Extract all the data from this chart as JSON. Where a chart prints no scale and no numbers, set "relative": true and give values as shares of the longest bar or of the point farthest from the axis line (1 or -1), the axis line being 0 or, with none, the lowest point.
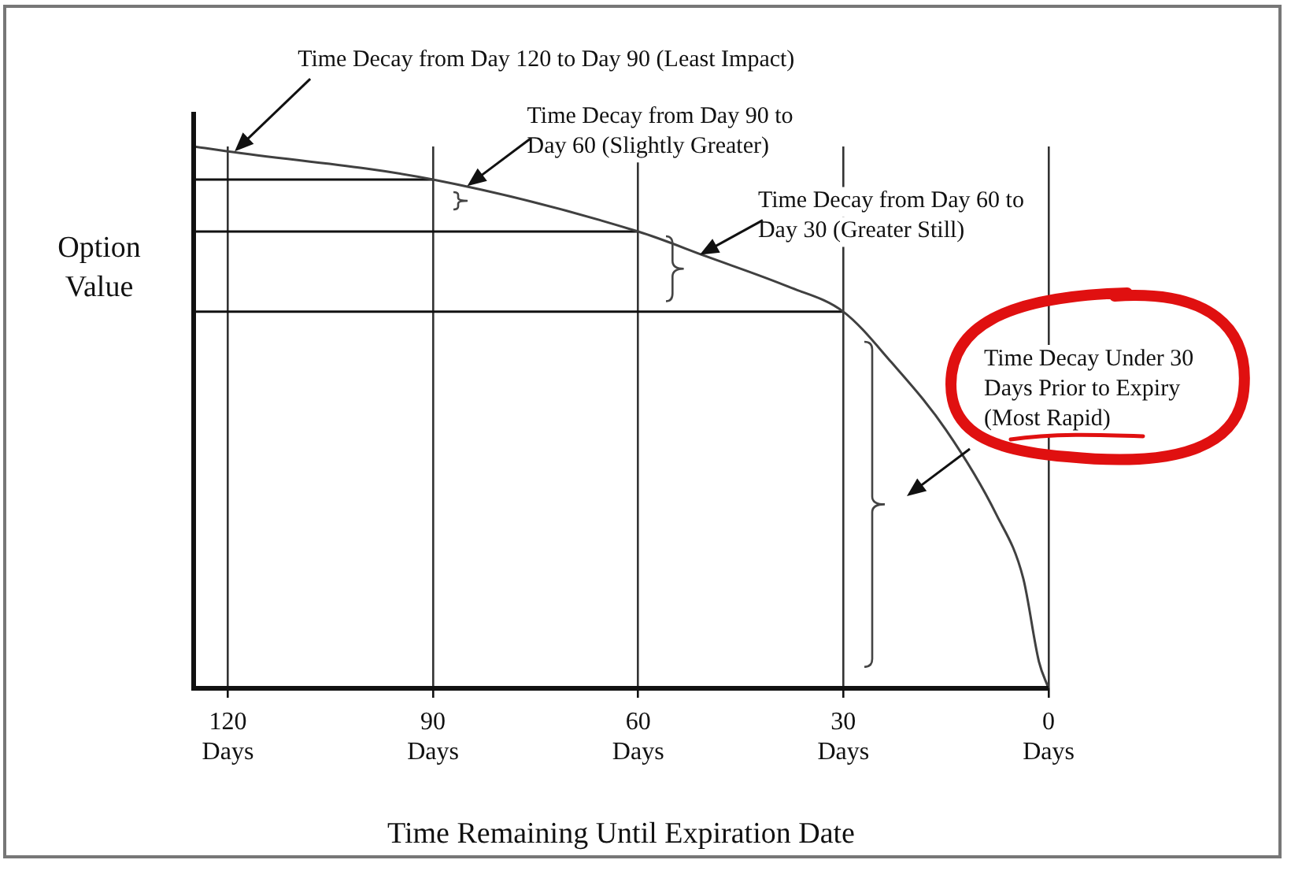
{
  "chart_data": {
    "type": "line",
    "relative": true,
    "xlabel": "Time Remaining Until Expiration Date",
    "ylabel": "Option Value",
    "x": [
      125,
      120,
      90,
      60,
      50,
      38,
      30,
      23,
      15,
      7.6,
      3.7,
      1.4,
      0
    ],
    "xlim": [
      125,
      0
    ],
    "xticks": [
      {
        "value": 120,
        "label": "120\nDays"
      },
      {
        "value": 90,
        "label": "90\nDays"
      },
      {
        "value": 60,
        "label": "60\nDays"
      },
      {
        "value": 30,
        "label": "30\nDays"
      },
      {
        "value": 0,
        "label": "0\nDays"
      }
    ],
    "series": [
      {
        "color": "#404040",
        "values": [
          1,
          0.991,
          0.939,
          0.843,
          0.797,
          0.741,
          0.695,
          0.602,
          0.477,
          0.32,
          0.203,
          0.049,
          0
        ]
      }
    ],
    "ref_lines": [
      {
        "axis": "y",
        "value": 0.939
      },
      {
        "axis": "y",
        "value": 0.843
      },
      {
        "axis": "y",
        "value": 0.695
      }
    ],
    "annotations": [
      {
        "text": "Time Decay from Day 120 to Day 90 (Least Impact)",
        "x": 119,
        "y": 0.991
      },
      {
        "text": "Time Decay from Day 90 to\nDay 60 (Slightly Greater)",
        "x": 85,
        "y": 0.927
      },
      {
        "text": "Time Decay from Day 60 to\nDay 30 (Greater Still)",
        "x": 51,
        "y": 0.8
      },
      "Time Decay Under 30\nDays Prior to Expiry\n(Most Rapid)"
    ],
    "grid": "x",
    "legend": false,
    "marker": "none",
    "line_style": "solid"
  }
}
